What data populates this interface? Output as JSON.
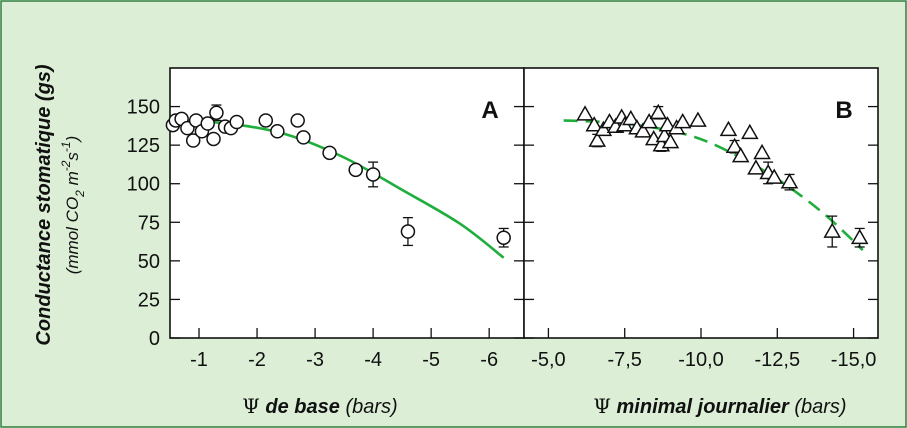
{
  "figure": {
    "ylabel_main": "Conductance stomatique (gs)",
    "ylabel_sub_pre": "(mmol CO",
    "ylabel_sub_co2_sub": "2",
    "ylabel_sub_mid1": " m",
    "ylabel_sub_exp1": "-2",
    "ylabel_sub_mid2": "s",
    "ylabel_sub_exp2": "-1",
    "ylabel_sub_post": ")",
    "psi_symbol": "Ψ",
    "colors": {
      "background": "#dcefd6",
      "fit": "#1fae3c",
      "axis": "#111111",
      "marker": "#111111"
    }
  },
  "chart_data": [
    {
      "type": "scatter",
      "panel": "A",
      "xlabel_bold": "de base",
      "xlabel_unit": "(bars)",
      "xlim": [
        -0.5,
        -6.6
      ],
      "ylim": [
        0,
        175
      ],
      "yticks": [
        0,
        25,
        50,
        75,
        100,
        125,
        150
      ],
      "ytick_labels": [
        "0",
        "25",
        "50",
        "75",
        "100",
        "125",
        "150"
      ],
      "xticks": [
        -1,
        -2,
        -3,
        -4,
        -5,
        -6
      ],
      "xtick_labels": [
        "-1",
        "-2",
        "-3",
        "-4",
        "-5",
        "-6"
      ],
      "marker": "circle",
      "points": [
        {
          "x": -0.55,
          "y": 138
        },
        {
          "x": -0.6,
          "y": 141
        },
        {
          "x": -0.7,
          "y": 142
        },
        {
          "x": -0.8,
          "y": 136
        },
        {
          "x": -0.9,
          "y": 128
        },
        {
          "x": -0.95,
          "y": 141
        },
        {
          "x": -1.05,
          "y": 134
        },
        {
          "x": -1.15,
          "y": 139
        },
        {
          "x": -1.25,
          "y": 129
        },
        {
          "x": -1.3,
          "y": 146
        },
        {
          "x": -1.45,
          "y": 137
        },
        {
          "x": -1.55,
          "y": 136
        },
        {
          "x": -1.65,
          "y": 140
        },
        {
          "x": -2.15,
          "y": 141
        },
        {
          "x": -2.35,
          "y": 134
        },
        {
          "x": -2.7,
          "y": 141
        },
        {
          "x": -2.8,
          "y": 130
        },
        {
          "x": -3.25,
          "y": 120
        },
        {
          "x": -3.7,
          "y": 109
        },
        {
          "x": -4.0,
          "y": 106
        },
        {
          "x": -4.6,
          "y": 69
        },
        {
          "x": -6.25,
          "y": 65
        }
      ],
      "errors": [
        {
          "x": -1.3,
          "y": 146,
          "err": 5
        },
        {
          "x": -4.0,
          "y": 106,
          "err": 8
        },
        {
          "x": -4.6,
          "y": 69,
          "err": 9
        },
        {
          "x": -6.25,
          "y": 65,
          "err": 6
        }
      ],
      "fit": {
        "style": "solid",
        "points": [
          [
            -0.5,
            141
          ],
          [
            -1.5,
            139
          ],
          [
            -2.5,
            132
          ],
          [
            -3.5,
            117
          ],
          [
            -4.5,
            96
          ],
          [
            -5.5,
            74
          ],
          [
            -6.25,
            52
          ]
        ]
      }
    },
    {
      "type": "scatter",
      "panel": "B",
      "xlabel_bold": "minimal journalier",
      "xlabel_unit": "(bars)",
      "xlim": [
        -4.2,
        -15.8
      ],
      "ylim": [
        0,
        175
      ],
      "xticks": [
        -5.0,
        -7.5,
        -10.0,
        -12.5,
        -15.0
      ],
      "xtick_labels": [
        "-5,0",
        "-7,5",
        "-10,0",
        "-12,5",
        "-15,0"
      ],
      "marker": "triangle",
      "points": [
        {
          "x": -6.2,
          "y": 145
        },
        {
          "x": -6.5,
          "y": 138
        },
        {
          "x": -6.6,
          "y": 128
        },
        {
          "x": -6.8,
          "y": 135
        },
        {
          "x": -7.0,
          "y": 140
        },
        {
          "x": -7.2,
          "y": 137
        },
        {
          "x": -7.4,
          "y": 143
        },
        {
          "x": -7.5,
          "y": 138
        },
        {
          "x": -7.7,
          "y": 142
        },
        {
          "x": -7.9,
          "y": 136
        },
        {
          "x": -8.1,
          "y": 134
        },
        {
          "x": -8.3,
          "y": 140
        },
        {
          "x": -8.45,
          "y": 129
        },
        {
          "x": -8.6,
          "y": 146
        },
        {
          "x": -8.7,
          "y": 125
        },
        {
          "x": -8.8,
          "y": 131
        },
        {
          "x": -8.9,
          "y": 138
        },
        {
          "x": -9.0,
          "y": 127
        },
        {
          "x": -9.2,
          "y": 136
        },
        {
          "x": -9.4,
          "y": 140
        },
        {
          "x": -9.9,
          "y": 141
        },
        {
          "x": -10.9,
          "y": 135
        },
        {
          "x": -11.1,
          "y": 124
        },
        {
          "x": -11.3,
          "y": 118
        },
        {
          "x": -11.6,
          "y": 133
        },
        {
          "x": -11.8,
          "y": 110
        },
        {
          "x": -12.0,
          "y": 120
        },
        {
          "x": -12.2,
          "y": 107
        },
        {
          "x": -12.4,
          "y": 104
        },
        {
          "x": -12.9,
          "y": 101
        },
        {
          "x": -14.3,
          "y": 69
        },
        {
          "x": -15.2,
          "y": 65
        }
      ],
      "errors": [
        {
          "x": -6.6,
          "y": 128,
          "err": 4
        },
        {
          "x": -8.6,
          "y": 146,
          "err": 4
        },
        {
          "x": -8.7,
          "y": 125,
          "err": 4
        },
        {
          "x": -11.1,
          "y": 124,
          "err": 4
        },
        {
          "x": -12.2,
          "y": 107,
          "err": 7
        },
        {
          "x": -12.9,
          "y": 101,
          "err": 5
        },
        {
          "x": -14.3,
          "y": 69,
          "err": 10
        },
        {
          "x": -15.2,
          "y": 65,
          "err": 6
        }
      ],
      "fit": {
        "style": "dashed",
        "points": [
          [
            -5.5,
            141
          ],
          [
            -7.5,
            139
          ],
          [
            -9.5,
            132
          ],
          [
            -11.0,
            120
          ],
          [
            -12.5,
            103
          ],
          [
            -14.0,
            81
          ],
          [
            -15.3,
            57
          ]
        ]
      }
    }
  ]
}
